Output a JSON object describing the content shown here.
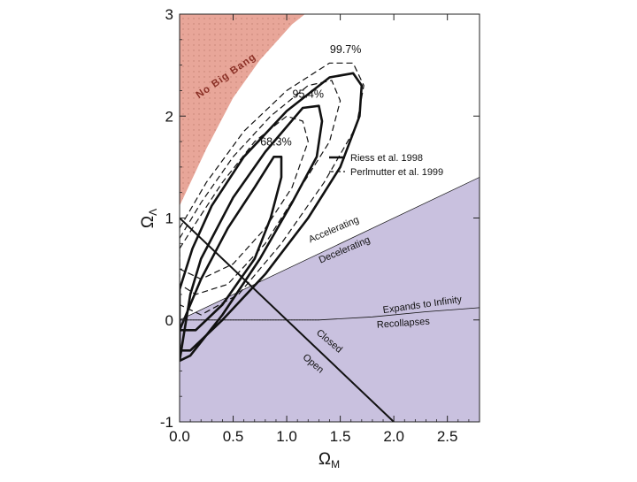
{
  "chart_data": {
    "type": "line",
    "title": "",
    "xlabel": "Ω",
    "xlabel_sub": "M",
    "ylabel": "Ω",
    "ylabel_sub": "Λ",
    "xlim": [
      0,
      2.8
    ],
    "ylim": [
      -1,
      3
    ],
    "x_ticks": [
      {
        "value": 0.0,
        "label": "0.0"
      },
      {
        "value": 0.5,
        "label": "0.5"
      },
      {
        "value": 1.0,
        "label": "1.0"
      },
      {
        "value": 1.5,
        "label": "1.5"
      },
      {
        "value": 2.0,
        "label": "2.0"
      },
      {
        "value": 2.5,
        "label": "2.5"
      }
    ],
    "y_ticks": [
      {
        "value": -1,
        "label": "-1"
      },
      {
        "value": 0,
        "label": "0"
      },
      {
        "value": 1,
        "label": "1"
      },
      {
        "value": 2,
        "label": "2"
      },
      {
        "value": 3,
        "label": "3"
      }
    ],
    "regions": [
      {
        "name": "No Big Bang",
        "label": "No Big Bang",
        "color": "#e8a699",
        "boundary": [
          [
            0.0,
            1.12
          ],
          [
            0.25,
            1.68
          ],
          [
            0.5,
            2.18
          ],
          [
            0.75,
            2.55
          ],
          [
            1.05,
            2.9
          ],
          [
            1.17,
            3.0
          ]
        ]
      },
      {
        "name": "decelerating",
        "color": "#c9c1df",
        "boundary": [
          [
            0.0,
            0.0
          ],
          [
            2.8,
            1.4
          ]
        ]
      }
    ],
    "lines": [
      {
        "name": "accelerating-decelerating",
        "points": [
          [
            0.0,
            0.0
          ],
          [
            2.8,
            1.4
          ]
        ]
      },
      {
        "name": "closed-open",
        "points": [
          [
            0.0,
            1.0
          ],
          [
            2.0,
            -1.0
          ]
        ]
      },
      {
        "name": "expands-recollapses",
        "points": [
          [
            0.0,
            0.0
          ],
          [
            0.9,
            0.0
          ],
          [
            1.3,
            0.0
          ],
          [
            1.8,
            0.03
          ],
          [
            2.3,
            0.08
          ],
          [
            2.8,
            0.12
          ]
        ]
      }
    ],
    "series": [
      {
        "name": "Riess et al. 1998",
        "style": "solid",
        "contours": [
          {
            "level": "68.3%",
            "points": [
              [
                0.0,
                -0.1
              ],
              [
                0.2,
                0.4
              ],
              [
                0.45,
                0.9
              ],
              [
                0.7,
                1.3
              ],
              [
                0.88,
                1.6
              ],
              [
                0.95,
                1.6
              ],
              [
                0.95,
                1.4
              ],
              [
                0.85,
                1.0
              ],
              [
                0.7,
                0.6
              ],
              [
                0.4,
                0.15
              ],
              [
                0.15,
                -0.1
              ],
              [
                0.0,
                -0.1
              ]
            ]
          },
          {
            "level": "95.4%",
            "points": [
              [
                0.0,
                -0.4
              ],
              [
                0.1,
                0.25
              ],
              [
                0.2,
                0.6
              ],
              [
                0.5,
                1.2
              ],
              [
                0.8,
                1.65
              ],
              [
                1.15,
                2.08
              ],
              [
                1.3,
                2.1
              ],
              [
                1.33,
                1.95
              ],
              [
                1.28,
                1.6
              ],
              [
                1.05,
                1.15
              ],
              [
                0.75,
                0.6
              ],
              [
                0.4,
                0.05
              ],
              [
                0.1,
                -0.35
              ],
              [
                0.0,
                -0.4
              ]
            ]
          },
          {
            "level": "99.7%",
            "points": [
              [
                0.0,
                0.3
              ],
              [
                0.12,
                0.7
              ],
              [
                0.3,
                1.12
              ],
              [
                0.6,
                1.6
              ],
              [
                1.0,
                2.05
              ],
              [
                1.4,
                2.38
              ],
              [
                1.62,
                2.42
              ],
              [
                1.7,
                2.3
              ],
              [
                1.68,
                2.0
              ],
              [
                1.5,
                1.5
              ],
              [
                1.2,
                1.0
              ],
              [
                0.8,
                0.45
              ],
              [
                0.4,
                0.0
              ],
              [
                0.1,
                -0.3
              ],
              [
                0.0,
                -0.3
              ]
            ]
          }
        ]
      },
      {
        "name": "Perlmutter et al. 1999",
        "style": "dashed",
        "contours": [
          {
            "level": "68.3%",
            "points": [
              [
                0.0,
                0.7
              ],
              [
                0.15,
                0.95
              ],
              [
                0.4,
                1.35
              ],
              [
                0.7,
                1.75
              ],
              [
                1.0,
                2.0
              ],
              [
                1.15,
                1.95
              ],
              [
                1.2,
                1.75
              ],
              [
                1.05,
                1.3
              ],
              [
                0.8,
                0.9
              ],
              [
                0.5,
                0.55
              ],
              [
                0.2,
                0.4
              ],
              [
                0.0,
                0.5
              ]
            ]
          },
          {
            "level": "95.4%",
            "points": [
              [
                0.0,
                0.8
              ],
              [
                0.2,
                1.15
              ],
              [
                0.5,
                1.6
              ],
              [
                0.85,
                2.0
              ],
              [
                1.2,
                2.3
              ],
              [
                1.42,
                2.35
              ],
              [
                1.5,
                2.15
              ],
              [
                1.4,
                1.75
              ],
              [
                1.1,
                1.25
              ],
              [
                0.8,
                0.75
              ],
              [
                0.45,
                0.35
              ],
              [
                0.15,
                0.25
              ],
              [
                0.0,
                0.35
              ]
            ]
          },
          {
            "level": "99.7%",
            "points": [
              [
                0.0,
                0.9
              ],
              [
                0.25,
                1.35
              ],
              [
                0.6,
                1.85
              ],
              [
                1.0,
                2.25
              ],
              [
                1.4,
                2.52
              ],
              [
                1.62,
                2.52
              ],
              [
                1.72,
                2.3
              ],
              [
                1.65,
                1.9
              ],
              [
                1.35,
                1.35
              ],
              [
                0.95,
                0.75
              ],
              [
                0.55,
                0.25
              ],
              [
                0.2,
                0.05
              ],
              [
                0.0,
                0.15
              ]
            ]
          }
        ]
      }
    ],
    "annotations": [
      {
        "text": "99.7%",
        "x": 1.55,
        "y": 2.62
      },
      {
        "text": "95.4%",
        "x": 1.2,
        "y": 2.18
      },
      {
        "text": "68.3%",
        "x": 0.9,
        "y": 1.71
      },
      {
        "text": "Accelerating",
        "x": 1.45,
        "y": 0.86,
        "angle": -23
      },
      {
        "text": "Decelerating",
        "x": 1.55,
        "y": 0.66,
        "angle": -23
      },
      {
        "text": "Expands to Infinity",
        "x": 2.27,
        "y": 0.12,
        "angle": -8
      },
      {
        "text": "Recollapses",
        "x": 2.09,
        "y": -0.06,
        "angle": -4
      },
      {
        "text": "Closed",
        "x": 1.38,
        "y": -0.23,
        "angle": 40
      },
      {
        "text": "Open",
        "x": 1.23,
        "y": -0.45,
        "angle": 40
      }
    ],
    "legend_position": "right",
    "legend": [
      {
        "label": "Riess et al. 1998",
        "style": "solid"
      },
      {
        "label": "Perlmutter et al. 1999",
        "style": "dashed"
      }
    ]
  }
}
